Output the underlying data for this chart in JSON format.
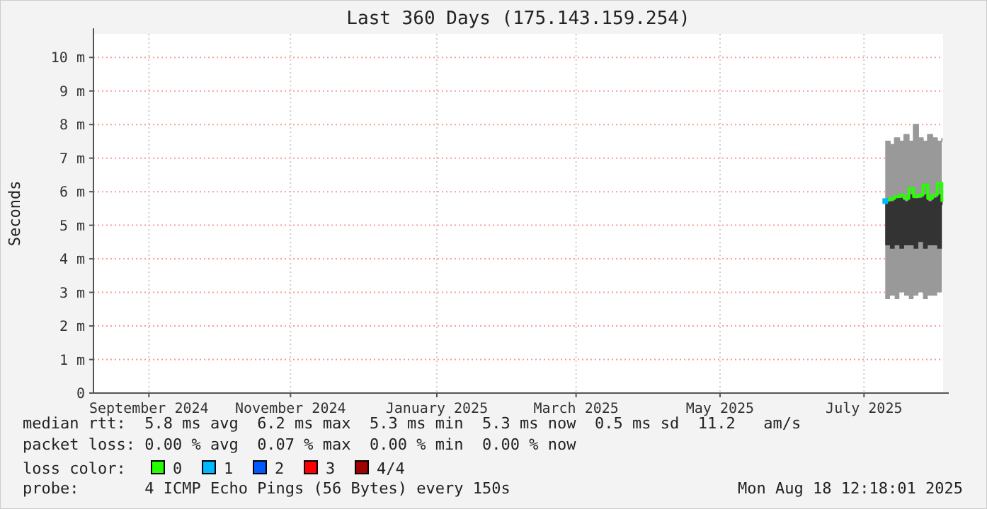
{
  "chart_data": {
    "type": "line",
    "title": "Last 360 Days (175.143.159.254)",
    "ylabel": "Seconds",
    "xlim": [
      "2024-08-23T12:18",
      "2025-08-18T12:18"
    ],
    "xticks": [
      {
        "value": "2024-09-16",
        "label": "September 2024"
      },
      {
        "value": "2024-11-15",
        "label": "November 2024"
      },
      {
        "value": "2025-01-16",
        "label": "January 2025"
      },
      {
        "value": "2025-03-16",
        "label": "March 2025"
      },
      {
        "value": "2025-05-16",
        "label": "May 2025"
      },
      {
        "value": "2025-07-16",
        "label": "July 2025"
      }
    ],
    "ylim": [
      0,
      10.7
    ],
    "yticks": [
      0,
      {
        "value": 1,
        "label": "1 m"
      },
      {
        "value": 2,
        "label": "2 m"
      },
      {
        "value": 3,
        "label": "3 m"
      },
      {
        "value": 4,
        "label": "4 m"
      },
      {
        "value": 5,
        "label": "5 m"
      },
      {
        "value": 6,
        "label": "6 m"
      },
      {
        "value": 7,
        "label": "7 m"
      },
      {
        "value": 8,
        "label": "8 m"
      },
      {
        "value": 9,
        "label": "9 m"
      },
      {
        "value": 10,
        "label": "10 m"
      }
    ],
    "grid": true,
    "legend": "bottom",
    "legend_title": "loss color:",
    "x": [
      "2025-07-25",
      "2025-07-27",
      "2025-07-29",
      "2025-07-31",
      "2025-08-02",
      "2025-08-04",
      "2025-08-06",
      "2025-08-08",
      "2025-08-10",
      "2025-08-12",
      "2025-08-14",
      "2025-08-16",
      "2025-08-18"
    ],
    "series": [
      {
        "color": "#999999",
        "values": [
          7.5,
          7.4,
          7.6,
          7.5,
          7.7,
          7.5,
          8.0,
          7.6,
          7.5,
          7.7,
          7.6,
          7.5,
          7.6
        ],
        "upper": [
          7.5,
          7.4,
          7.6,
          7.5,
          7.7,
          7.5,
          8.0,
          7.6,
          7.5,
          7.7,
          7.6,
          7.5,
          7.6
        ],
        "lower": [
          2.8,
          2.9,
          2.8,
          3.0,
          2.9,
          2.8,
          2.9,
          3.0,
          2.8,
          2.9,
          2.9,
          3.0,
          2.9
        ]
      },
      {
        "color": "#333333",
        "values": [
          5.7,
          5.7,
          5.8,
          5.8,
          5.7,
          5.9,
          5.8,
          5.8,
          5.9,
          5.7,
          5.8,
          5.9,
          5.6
        ],
        "upper": [
          5.7,
          5.7,
          5.8,
          5.8,
          5.7,
          5.9,
          5.8,
          5.8,
          5.9,
          5.7,
          5.8,
          5.9,
          5.6
        ],
        "lower": [
          4.4,
          4.3,
          4.4,
          4.3,
          4.4,
          4.4,
          4.3,
          4.5,
          4.3,
          4.4,
          4.4,
          4.3,
          4.2
        ]
      },
      {
        "name": "0",
        "color": "#26ff00",
        "values": [
          5.75,
          5.8,
          5.85,
          5.9,
          5.8,
          6.1,
          5.85,
          5.9,
          6.2,
          5.8,
          5.9,
          6.25,
          5.7
        ]
      },
      {
        "name": "1",
        "color": "#00b8ff",
        "marker": "square",
        "values": [
          5.72,
          null,
          null,
          null,
          null,
          null,
          null,
          null,
          null,
          null,
          null,
          null,
          null
        ]
      },
      {
        "name": "2",
        "color": "#0059ff",
        "values": [
          null,
          null,
          null,
          null,
          null,
          null,
          null,
          null,
          null,
          null,
          null,
          null,
          null
        ]
      },
      {
        "name": "3",
        "color": "#ff0000",
        "values": [
          null,
          null,
          null,
          null,
          null,
          null,
          null,
          null,
          null,
          null,
          null,
          null,
          null
        ]
      },
      {
        "name": "4/4",
        "color": "#a10000",
        "values": [
          null,
          null,
          null,
          null,
          null,
          null,
          null,
          null,
          null,
          null,
          null,
          null,
          null
        ]
      }
    ],
    "annotations": [
      "median rtt:  5.8 ms avg  6.2 ms max  5.3 ms min  5.3 ms now  0.5 ms sd  11.2   am/s",
      "packet loss: 0.00 % avg  0.07 % max  0.00 % min  0.00 % now",
      "probe:       4 ICMP Echo Pings (56 Bytes) every 150s",
      "Mon Aug 18 12:18:01 2025"
    ]
  }
}
